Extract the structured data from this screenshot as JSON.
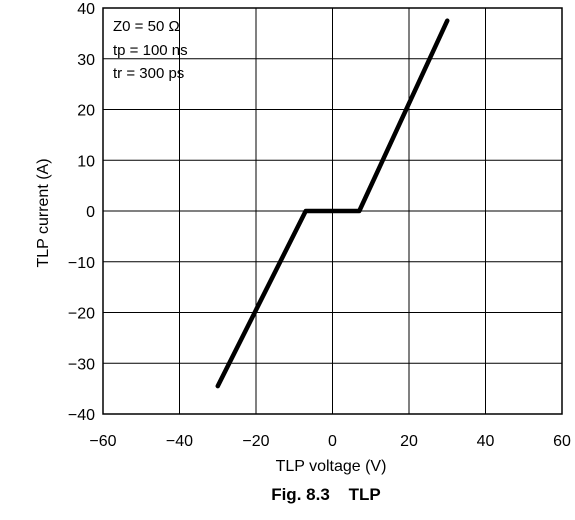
{
  "chart_data": {
    "type": "line",
    "title": "",
    "caption": "Fig. 8.3    TLP",
    "xlabel": "TLP voltage    (V)",
    "ylabel": "TLP current    (A)",
    "xlim": [
      -60,
      60
    ],
    "ylim": [
      -40,
      40
    ],
    "xticks": [
      -60,
      -40,
      -20,
      0,
      20,
      40,
      60
    ],
    "yticks": [
      -40,
      -30,
      -20,
      -10,
      0,
      10,
      20,
      30,
      40
    ],
    "xtick_labels": [
      "−60",
      "−40",
      "−20",
      "0",
      "20",
      "40",
      "60"
    ],
    "ytick_labels": [
      "−40",
      "−30",
      "−20",
      "−10",
      "0",
      "10",
      "20",
      "30",
      "40"
    ],
    "grid": true,
    "annotations": [
      "Z0 = 50 Ω",
      "tp = 100 ns",
      "tr = 300 ps"
    ],
    "series": [
      {
        "x": [
          -30,
          -7,
          7,
          30
        ],
        "y": [
          -34.5,
          0,
          0,
          37.5
        ]
      }
    ]
  }
}
